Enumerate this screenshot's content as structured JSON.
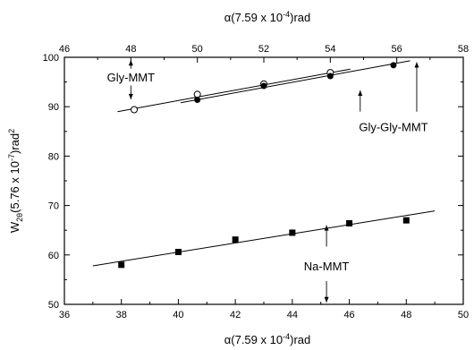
{
  "chart_data": {
    "type": "scatter",
    "x_bottom": {
      "label": "α(7.59 x 10",
      "label_exp": "-4",
      "label_tail": ")rad",
      "range": [
        36,
        50
      ],
      "ticks": [
        36,
        38,
        40,
        42,
        44,
        46,
        48,
        50
      ]
    },
    "x_top": {
      "label": "α(7.59 x 10",
      "label_exp": "-4",
      "label_tail": ")rad",
      "range": [
        46,
        58
      ],
      "ticks": [
        46,
        48,
        50,
        52,
        54,
        56,
        58
      ]
    },
    "y": {
      "label_main": "W",
      "label_sub": "2θ",
      "label_mid": "(5.76 x 10",
      "label_exp": "-7",
      "label_tail": ")rad",
      "label_exp2": "2",
      "range": [
        50,
        100
      ],
      "ticks": [
        50,
        60,
        70,
        80,
        90,
        100
      ]
    },
    "grid": false,
    "series": [
      {
        "name": "Na-MMT",
        "axis": "bottom",
        "marker": "square",
        "points": [
          [
            38,
            58.0
          ],
          [
            40,
            60.6
          ],
          [
            42,
            63.1
          ],
          [
            44,
            64.5
          ],
          [
            46,
            66.4
          ],
          [
            48,
            67.0
          ]
        ],
        "fit": [
          [
            37,
            57.8
          ],
          [
            49,
            68.9
          ]
        ]
      },
      {
        "name": "Gly-MMT",
        "axis": "top",
        "marker": "open-circle",
        "points": [
          [
            48.1,
            89.4
          ],
          [
            50.0,
            92.5
          ],
          [
            52.0,
            94.6
          ],
          [
            54.0,
            96.9
          ]
        ],
        "fit": [
          [
            47.6,
            89.0
          ],
          [
            54.6,
            97.6
          ]
        ]
      },
      {
        "name": "Gly-Gly-MMT",
        "axis": "top",
        "marker": "filled-circle",
        "points": [
          [
            50.0,
            91.4
          ],
          [
            52.0,
            94.2
          ],
          [
            54.0,
            96.2
          ],
          [
            55.9,
            98.4
          ]
        ],
        "fit": [
          [
            49.5,
            90.8
          ],
          [
            56.4,
            99.3
          ]
        ]
      }
    ],
    "annotations": [
      {
        "text": "Gly-MMT",
        "data_x": 48.0,
        "data_axis": "top",
        "label_y": 96.0,
        "arrow_from": 94.3,
        "arrow_to": 91.5,
        "arrow_up_from": 97.7,
        "arrow_up_to": 99.4
      },
      {
        "text": "Gly-Gly-MMT",
        "data_x": 56.6,
        "data_axis": "top",
        "label_y": 86.0
      },
      {
        "text": "Na-MMT",
        "data_x": 45.2,
        "data_axis": "bottom",
        "label_y": 57.8
      }
    ]
  }
}
